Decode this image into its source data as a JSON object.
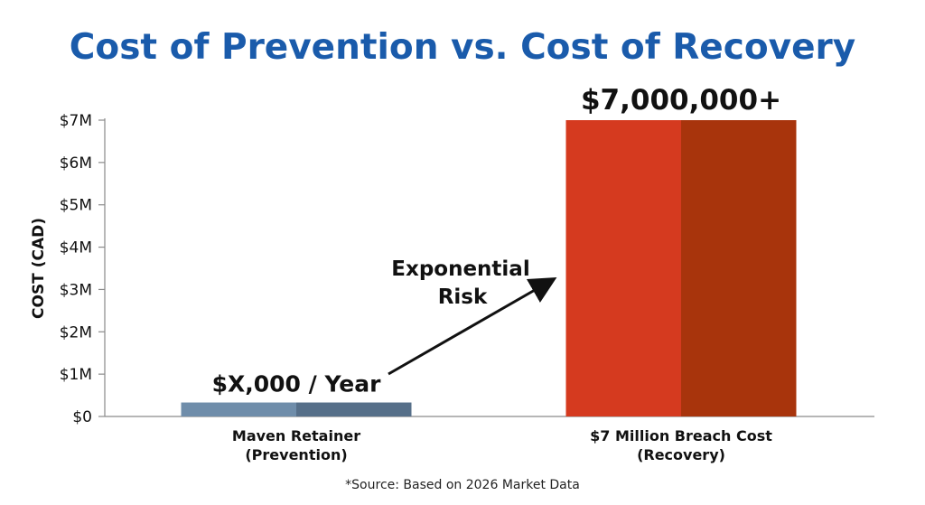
{
  "chart_data": {
    "type": "bar",
    "title": "Cost of Prevention vs. Cost of Recovery",
    "ylabel": "COST (CAD)",
    "xlabel": "",
    "ylim": [
      0,
      7000000
    ],
    "yticks": [
      {
        "value": 0,
        "label": "$0"
      },
      {
        "value": 1000000,
        "label": "$1M"
      },
      {
        "value": 2000000,
        "label": "$2M"
      },
      {
        "value": 3000000,
        "label": "$3M"
      },
      {
        "value": 4000000,
        "label": "$4M"
      },
      {
        "value": 5000000,
        "label": "$5M"
      },
      {
        "value": 6000000,
        "label": "$6M"
      },
      {
        "value": 7000000,
        "label": "$7M"
      }
    ],
    "categories": [
      [
        "Maven Retainer",
        "(Prevention)"
      ],
      [
        "$7 Million Breach Cost",
        "(Recovery)"
      ]
    ],
    "values": [
      330000,
      7000000
    ],
    "data_labels": [
      "$X,000 / Year",
      "$7,000,000+"
    ],
    "annotation": {
      "lines": [
        "Exponential",
        "Risk"
      ]
    },
    "grid": false,
    "source_note": "*Source: Based on 2026 Market Data",
    "colors": {
      "title": "#1a5bab",
      "text": "#111111",
      "axis": "#8a8a8a",
      "bar1_light": "#6f8daa",
      "bar1_dark": "#566f89",
      "bar2_light": "#d53a1f",
      "bar2_dark": "#a8340c"
    }
  }
}
